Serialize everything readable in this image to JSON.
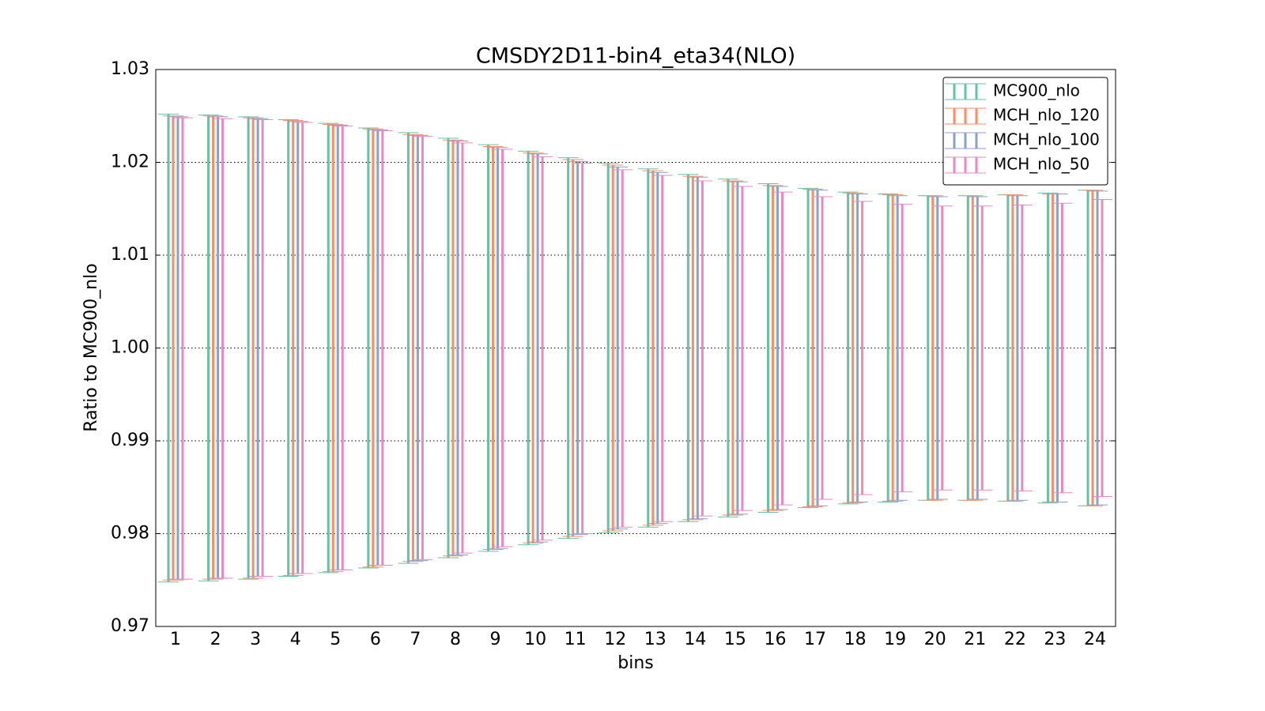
{
  "chart_data": {
    "type": "errorbar",
    "title": "CMSDY2D11-bin4_eta34(NLO)",
    "x_label": "bins",
    "y_label": "Ratio to MC900_nlo",
    "categories": [
      "1",
      "2",
      "3",
      "4",
      "5",
      "6",
      "7",
      "8",
      "9",
      "10",
      "11",
      "12",
      "13",
      "14",
      "15",
      "16",
      "17",
      "18",
      "19",
      "20",
      "21",
      "22",
      "23",
      "24"
    ],
    "ylim": [
      0.97,
      1.03
    ],
    "yticks": [
      0.97,
      0.98,
      0.99,
      {
        "value": 1,
        "label": "1.00"
      },
      1.01,
      1.02,
      1.03
    ],
    "grid": true,
    "legend": "upper right",
    "series": [
      {
        "name": "MC900_nlo",
        "color": "#66c2a5",
        "highs": [
          1.0252,
          1.0251,
          1.0249,
          1.0246,
          1.0242,
          1.0237,
          1.0232,
          1.0226,
          1.0219,
          1.0212,
          1.0205,
          1.0199,
          1.0193,
          1.0187,
          1.0182,
          1.0177,
          1.0172,
          1.0168,
          1.0166,
          1.0164,
          1.0164,
          1.0165,
          1.0167,
          1.017
        ],
        "lows": [
          0.9748,
          0.9749,
          0.9751,
          0.9754,
          0.9758,
          0.9763,
          0.9768,
          0.9774,
          0.9781,
          0.9788,
          0.9795,
          0.9801,
          0.9807,
          0.9813,
          0.9818,
          0.9823,
          0.9828,
          0.9832,
          0.9834,
          0.9836,
          0.9836,
          0.9835,
          0.9833,
          0.983
        ]
      },
      {
        "name": "MCH_nlo_120",
        "color": "#fc8d62",
        "highs": [
          1.025,
          1.025,
          1.0248,
          1.0245,
          1.0241,
          1.0236,
          1.023,
          1.0224,
          1.0217,
          1.021,
          1.0203,
          1.0197,
          1.0191,
          1.0185,
          1.018,
          1.0175,
          1.0171,
          1.0167,
          1.0165,
          1.0164,
          1.0164,
          1.0165,
          1.0166,
          1.017
        ],
        "lows": [
          0.975,
          0.9751,
          0.9752,
          0.9755,
          0.9759,
          0.9764,
          0.977,
          0.9776,
          0.9783,
          0.979,
          0.9797,
          0.9803,
          0.9809,
          0.9815,
          0.982,
          0.9825,
          0.9829,
          0.9833,
          0.9835,
          0.9836,
          0.9836,
          0.9835,
          0.9834,
          0.983
        ]
      },
      {
        "name": "MCH_nlo_100",
        "color": "#8da0cb",
        "highs": [
          1.0249,
          1.0249,
          1.0247,
          1.0244,
          1.024,
          1.0235,
          1.0229,
          1.0223,
          1.0216,
          1.0209,
          1.0201,
          1.0195,
          1.0189,
          1.0184,
          1.0179,
          1.0174,
          1.017,
          1.0166,
          1.0164,
          1.0163,
          1.0163,
          1.0164,
          1.0166,
          1.0169
        ],
        "lows": [
          0.9751,
          0.9752,
          0.9754,
          0.9757,
          0.9761,
          0.9766,
          0.9771,
          0.9777,
          0.9784,
          0.9791,
          0.9799,
          0.9805,
          0.9811,
          0.9816,
          0.9821,
          0.9826,
          0.983,
          0.9834,
          0.9836,
          0.9837,
          0.9837,
          0.9836,
          0.9834,
          0.9831
        ]
      },
      {
        "name": "MCH_nlo_50",
        "color": "#e78ac3",
        "highs": [
          1.0248,
          1.0247,
          1.0246,
          1.0243,
          1.0239,
          1.0234,
          1.0228,
          1.0221,
          1.0214,
          1.0206,
          1.0199,
          1.0192,
          1.0186,
          1.018,
          1.0174,
          1.0168,
          1.0163,
          1.0158,
          1.0155,
          1.0153,
          1.0153,
          1.0154,
          1.0156,
          1.016
        ],
        "lows": [
          0.9751,
          0.9752,
          0.9754,
          0.9757,
          0.9761,
          0.9766,
          0.9772,
          0.9779,
          0.9786,
          0.9793,
          0.98,
          0.9807,
          0.9813,
          0.9819,
          0.9825,
          0.9831,
          0.9837,
          0.9842,
          0.9845,
          0.9847,
          0.9847,
          0.9846,
          0.9844,
          0.984
        ]
      }
    ]
  }
}
